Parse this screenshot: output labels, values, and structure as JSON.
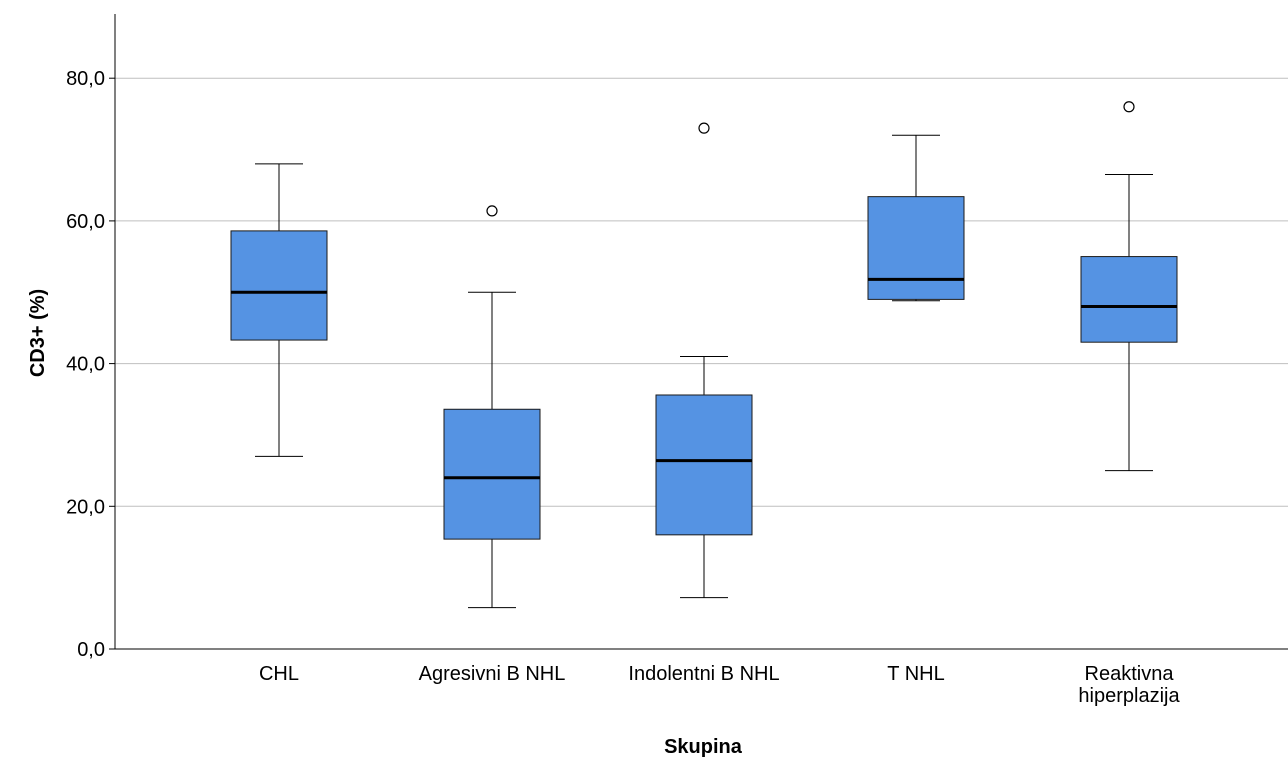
{
  "chart_data": {
    "type": "boxplot",
    "title": "",
    "xlabel": "Skupina",
    "ylabel": "CD3+ (%)",
    "ylim": [
      0,
      88
    ],
    "yticks": [
      0,
      20,
      40,
      60,
      80
    ],
    "ytick_labels": [
      "0,0",
      "20,0",
      "40,0",
      "60,0",
      "80,0"
    ],
    "grid": true,
    "box_color": "#5593e3",
    "categories": [
      {
        "label_lines": [
          "CHL"
        ],
        "whisker_low": 27.0,
        "q1": 43.3,
        "median": 50.0,
        "q3": 58.6,
        "whisker_high": 68.0,
        "outliers": []
      },
      {
        "label_lines": [
          "Agresivni B NHL"
        ],
        "whisker_low": 5.8,
        "q1": 15.4,
        "median": 24.0,
        "q3": 33.6,
        "whisker_high": 50.0,
        "outliers": [
          61.4
        ]
      },
      {
        "label_lines": [
          "Indolentni B NHL"
        ],
        "whisker_low": 7.2,
        "q1": 16.0,
        "median": 26.4,
        "q3": 35.6,
        "whisker_high": 41.0,
        "outliers": [
          73.0
        ]
      },
      {
        "label_lines": [
          "T NHL"
        ],
        "whisker_low": 48.8,
        "q1": 49.0,
        "median": 51.8,
        "q3": 63.4,
        "whisker_high": 72.0,
        "outliers": []
      },
      {
        "label_lines": [
          "Reaktivna",
          "hiperplazija"
        ],
        "whisker_low": 25.0,
        "q1": 43.0,
        "median": 48.0,
        "q3": 55.0,
        "whisker_high": 66.5,
        "outliers": [
          76.0
        ]
      }
    ]
  }
}
